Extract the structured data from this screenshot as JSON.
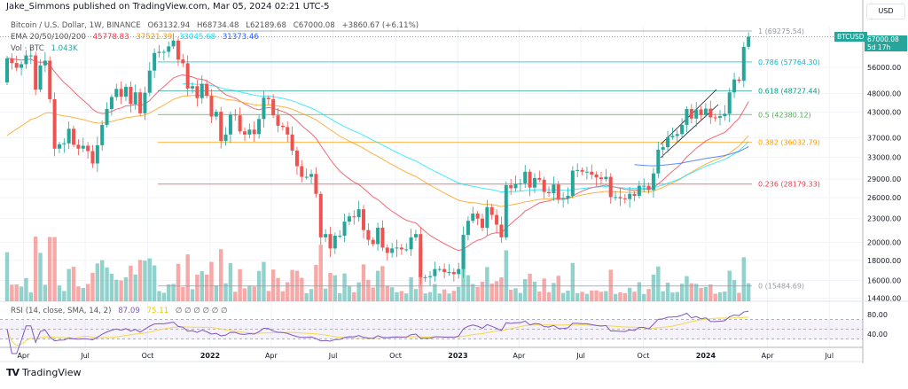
{
  "header": {
    "publisher": "Jake_Simmons published on TradingView.com, Mar 05, 2024 02:21 UTC-5"
  },
  "legend": {
    "symbol": "Bitcoin / U.S. Dollar, 1W, BINANCE",
    "open": "O63132.94",
    "high": "H68734.48",
    "low": "L62189.68",
    "close": "C67000.08",
    "change": "+3860.67 (+6.11%)",
    "ema_label": "EMA 20/50/100/200",
    "ema_values": [
      {
        "value": "45778.83",
        "color": "#f23645"
      },
      {
        "value": "37521.39",
        "color": "#ff9800"
      },
      {
        "value": "33045.68",
        "color": "#00e5ff"
      },
      {
        "value": "31373.46",
        "color": "#2962ff"
      }
    ],
    "vol_label": "Vol · BTC",
    "vol_value": "1.043K",
    "rsi_label": "RSI (14, close, SMA, 14, 2)",
    "rsi_value": "87.09",
    "rsi_sma_value": "75.11",
    "rsi_empty": "∅ ∅ ∅ ∅ ∅ ∅"
  },
  "price_axis": {
    "currency": "USD",
    "symbol_tag": "BTCUSD",
    "last_price": "67000.08",
    "countdown": "5d 17h"
  },
  "footer": {
    "brand": "TradingView",
    "logo": "TV"
  },
  "colors": {
    "up": "#26a69a",
    "down": "#ef5350",
    "rsi": "#7e57c2",
    "rsi_sma": "#f3d94e"
  },
  "chart_data": {
    "type": "candlestick",
    "interval": "1W",
    "scale": "log",
    "grid": true,
    "start_week": "2021-03-08",
    "first_open": 51200,
    "close": [
      59000,
      57400,
      55800,
      57000,
      60000,
      60000,
      49100,
      56600,
      58200,
      46400,
      34700,
      35600,
      35800,
      39000,
      35500,
      34700,
      35300,
      34200,
      31800,
      35400,
      39900,
      43800,
      47000,
      49300,
      47100,
      49900,
      45100,
      48300,
      42700,
      48200,
      54900,
      60900,
      61300,
      61300,
      63300,
      65500,
      58600,
      57300,
      49400,
      50100,
      46700,
      50800,
      47300,
      41900,
      43100,
      36300,
      37700,
      42400,
      42200,
      38400,
      37700,
      38800,
      37800,
      41300,
      46800,
      46400,
      42200,
      39700,
      39400,
      37700,
      34300,
      31300,
      29400,
      29400,
      29900,
      26600,
      20600,
      21000,
      19300,
      20800,
      20800,
      22600,
      23300,
      23200,
      24300,
      21500,
      20300,
      19800,
      21800,
      19400,
      18800,
      19300,
      19400,
      19200,
      19200,
      20600,
      21000,
      16300,
      16300,
      16400,
      17100,
      17100,
      16800,
      16800,
      16600,
      17100,
      20900,
      22700,
      23700,
      23000,
      21800,
      24600,
      23500,
      22200,
      20600,
      28000,
      27500,
      28200,
      28300,
      30300,
      27600,
      29200,
      28900,
      26900,
      26700,
      28100,
      25800,
      25900,
      26300,
      30500,
      30600,
      30300,
      30300,
      29800,
      29300,
      29000,
      29400,
      26100,
      26100,
      25900,
      25800,
      26600,
      26300,
      27900,
      27900,
      27200,
      30000,
      34500,
      35000,
      37100,
      37400,
      37800,
      39900,
      43800,
      41400,
      43700,
      42300,
      43900,
      41700,
      41600,
      42000,
      42600,
      48300,
      52100,
      51700,
      63100,
      67000.08
    ],
    "last_candle": {
      "open": 63132.94,
      "high": 68734.48,
      "low": 62189.68,
      "close": 67000.08
    },
    "price_ticks": [
      {
        "value": 56000,
        "label": "56000.00"
      },
      {
        "value": 48000,
        "label": "48000.00"
      },
      {
        "value": 43000,
        "label": "43000.00"
      },
      {
        "value": 37000,
        "label": "37000.00"
      },
      {
        "value": 33000,
        "label": "33000.00"
      },
      {
        "value": 29000,
        "label": "29000.00"
      },
      {
        "value": 26000,
        "label": "26000.00"
      },
      {
        "value": 23000,
        "label": "23000.00"
      },
      {
        "value": 20000,
        "label": "20000.00"
      },
      {
        "value": 18000,
        "label": "18000.00"
      },
      {
        "value": 16000,
        "label": "16000.00"
      },
      {
        "value": 14400,
        "label": "14400.00"
      }
    ],
    "rsi_ticks": [
      {
        "value": 80,
        "label": "80.00"
      },
      {
        "value": 40,
        "label": "40.00"
      }
    ],
    "time_ticks": [
      {
        "label": "Apr",
        "date": "2021-04-01"
      },
      {
        "label": "Jul",
        "date": "2021-07-01"
      },
      {
        "label": "Oct",
        "date": "2021-10-01"
      },
      {
        "label": "2022",
        "date": "2022-01-01",
        "bold": true
      },
      {
        "label": "Apr",
        "date": "2022-04-01"
      },
      {
        "label": "Jul",
        "date": "2022-07-01"
      },
      {
        "label": "Oct",
        "date": "2022-10-01"
      },
      {
        "label": "2023",
        "date": "2023-01-01",
        "bold": true
      },
      {
        "label": "Apr",
        "date": "2023-04-01"
      },
      {
        "label": "Jul",
        "date": "2023-07-01"
      },
      {
        "label": "Oct",
        "date": "2023-10-01"
      },
      {
        "label": "2024",
        "date": "2024-01-01",
        "bold": true
      },
      {
        "label": "Apr",
        "date": "2024-04-01"
      },
      {
        "label": "Jul",
        "date": "2024-07-01"
      }
    ],
    "fibonacci": [
      {
        "level": "1",
        "price": 69275.54,
        "label": "1 (69275.54)",
        "color": "#9598a1"
      },
      {
        "level": "0.786",
        "price": 57764.3,
        "label": "0.786 (57764.30)",
        "color": "#00bcd4"
      },
      {
        "level": "0.618",
        "price": 48727.44,
        "label": "0.618 (48727.44)",
        "color": "#089981"
      },
      {
        "level": "0.5",
        "price": 42380.12,
        "label": "0.5 (42380.12)",
        "color": "#4caf50"
      },
      {
        "level": "0.382",
        "price": 36032.79,
        "label": "0.382 (36032.79)",
        "color": "#ff9800"
      },
      {
        "level": "0.236",
        "price": 28179.33,
        "label": "0.236 (28179.33)",
        "color": "#f23645"
      },
      {
        "level": "0",
        "price": 15484.69,
        "label": "0 (15484.69)",
        "color": "#9598a1"
      }
    ],
    "ema_periods": [
      20,
      50,
      100,
      200
    ],
    "rsi_period": 14
  }
}
